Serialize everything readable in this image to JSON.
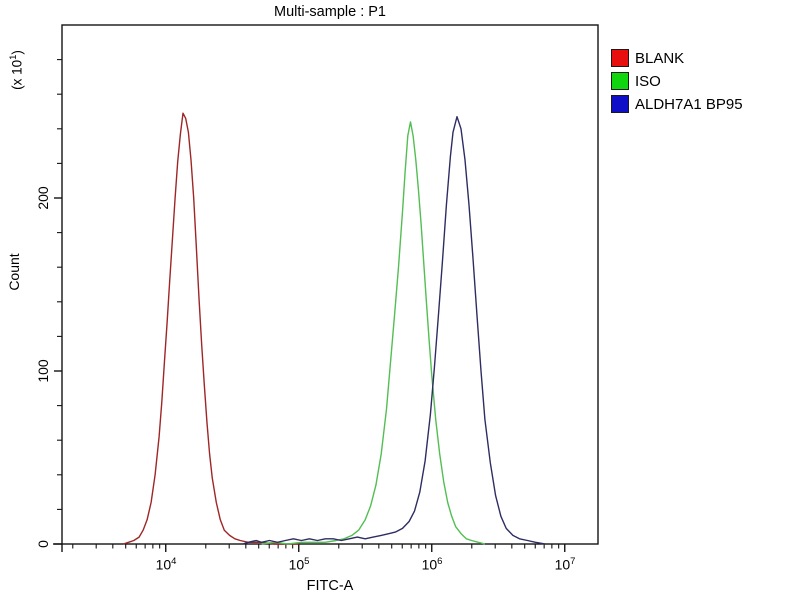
{
  "chart_data": {
    "type": "line",
    "subtype": "flow-cytometry-histogram-overlay",
    "title": "Multi-sample : P1",
    "xlabel": "FITC-A",
    "ylabel": "Count",
    "y_axis_unit": {
      "prefix": "(x 10",
      "exp": "1",
      "suffix": ")"
    },
    "x_scale": "log10",
    "xlim_log10": [
      3.22,
      7.25
    ],
    "ylim": [
      0,
      300
    ],
    "grid": false,
    "legend_position": "outside-top-right",
    "x_major_ticks": [
      {
        "value": 10000,
        "base": "10",
        "exp": "4"
      },
      {
        "value": 100000,
        "base": "10",
        "exp": "5"
      },
      {
        "value": 1000000,
        "base": "10",
        "exp": "6"
      },
      {
        "value": 10000000,
        "base": "10",
        "exp": "7"
      }
    ],
    "y_tick_labels": [
      "0",
      "100",
      "200"
    ],
    "y_major_ticks": [
      0,
      100,
      200
    ],
    "y_minor_step": 20,
    "series": [
      {
        "name": "BLANK",
        "color": "#9e2626",
        "peak_x_approx": 14000,
        "peak_count_axis_units": 249,
        "points_log10x_count": [
          [
            3.68,
            0
          ],
          [
            3.72,
            1
          ],
          [
            3.76,
            2
          ],
          [
            3.8,
            4
          ],
          [
            3.83,
            8
          ],
          [
            3.86,
            14
          ],
          [
            3.89,
            24
          ],
          [
            3.92,
            40
          ],
          [
            3.95,
            62
          ],
          [
            3.97,
            82
          ],
          [
            3.99,
            105
          ],
          [
            4.01,
            128
          ],
          [
            4.03,
            152
          ],
          [
            4.05,
            176
          ],
          [
            4.07,
            200
          ],
          [
            4.09,
            221
          ],
          [
            4.11,
            237
          ],
          [
            4.13,
            249
          ],
          [
            4.15,
            246
          ],
          [
            4.17,
            238
          ],
          [
            4.19,
            222
          ],
          [
            4.21,
            200
          ],
          [
            4.23,
            172
          ],
          [
            4.25,
            142
          ],
          [
            4.27,
            115
          ],
          [
            4.29,
            92
          ],
          [
            4.31,
            70
          ],
          [
            4.33,
            52
          ],
          [
            4.35,
            38
          ],
          [
            4.38,
            24
          ],
          [
            4.41,
            14
          ],
          [
            4.44,
            8
          ],
          [
            4.48,
            5
          ],
          [
            4.52,
            3
          ],
          [
            4.56,
            2
          ],
          [
            4.62,
            1
          ],
          [
            4.72,
            1
          ],
          [
            4.82,
            0
          ],
          [
            5.0,
            0
          ]
        ]
      },
      {
        "name": "ISO",
        "color": "#53be53",
        "peak_x_approx": 660000,
        "peak_count_axis_units": 244,
        "points_log10x_count": [
          [
            4.72,
            0
          ],
          [
            4.82,
            1
          ],
          [
            4.92,
            0
          ],
          [
            5.02,
            1
          ],
          [
            5.12,
            1
          ],
          [
            5.2,
            1
          ],
          [
            5.28,
            2
          ],
          [
            5.34,
            3
          ],
          [
            5.4,
            5
          ],
          [
            5.45,
            8
          ],
          [
            5.5,
            14
          ],
          [
            5.54,
            22
          ],
          [
            5.58,
            34
          ],
          [
            5.62,
            52
          ],
          [
            5.66,
            78
          ],
          [
            5.69,
            105
          ],
          [
            5.72,
            132
          ],
          [
            5.75,
            160
          ],
          [
            5.78,
            192
          ],
          [
            5.8,
            215
          ],
          [
            5.82,
            236
          ],
          [
            5.84,
            244
          ],
          [
            5.86,
            236
          ],
          [
            5.88,
            222
          ],
          [
            5.9,
            205
          ],
          [
            5.92,
            185
          ],
          [
            5.94,
            162
          ],
          [
            5.96,
            140
          ],
          [
            5.98,
            118
          ],
          [
            6.0,
            98
          ],
          [
            6.03,
            72
          ],
          [
            6.06,
            52
          ],
          [
            6.09,
            36
          ],
          [
            6.12,
            24
          ],
          [
            6.15,
            16
          ],
          [
            6.18,
            10
          ],
          [
            6.22,
            6
          ],
          [
            6.26,
            3
          ],
          [
            6.3,
            2
          ],
          [
            6.35,
            1
          ],
          [
            6.4,
            0
          ]
        ]
      },
      {
        "name": "ALDH7A1 BP95",
        "color": "#2d2d63",
        "peak_x_approx": 1550000,
        "peak_count_axis_units": 247,
        "points_log10x_count": [
          [
            4.58,
            0
          ],
          [
            4.62,
            1
          ],
          [
            4.68,
            2
          ],
          [
            4.72,
            1
          ],
          [
            4.78,
            2
          ],
          [
            4.84,
            1
          ],
          [
            4.9,
            2
          ],
          [
            4.96,
            3
          ],
          [
            5.02,
            2
          ],
          [
            5.08,
            3
          ],
          [
            5.14,
            2
          ],
          [
            5.2,
            3
          ],
          [
            5.26,
            3
          ],
          [
            5.32,
            2
          ],
          [
            5.38,
            3
          ],
          [
            5.44,
            4
          ],
          [
            5.5,
            3
          ],
          [
            5.56,
            4
          ],
          [
            5.62,
            5
          ],
          [
            5.68,
            6
          ],
          [
            5.73,
            7
          ],
          [
            5.78,
            9
          ],
          [
            5.83,
            13
          ],
          [
            5.87,
            19
          ],
          [
            5.91,
            30
          ],
          [
            5.95,
            48
          ],
          [
            5.99,
            75
          ],
          [
            6.02,
            102
          ],
          [
            6.05,
            132
          ],
          [
            6.08,
            163
          ],
          [
            6.11,
            196
          ],
          [
            6.14,
            224
          ],
          [
            6.16,
            238
          ],
          [
            6.19,
            247
          ],
          [
            6.22,
            240
          ],
          [
            6.25,
            222
          ],
          [
            6.28,
            196
          ],
          [
            6.31,
            165
          ],
          [
            6.34,
            132
          ],
          [
            6.37,
            100
          ],
          [
            6.4,
            72
          ],
          [
            6.44,
            47
          ],
          [
            6.48,
            28
          ],
          [
            6.52,
            16
          ],
          [
            6.56,
            9
          ],
          [
            6.61,
            5
          ],
          [
            6.66,
            3
          ],
          [
            6.72,
            2
          ],
          [
            6.78,
            1
          ],
          [
            6.85,
            0
          ]
        ]
      }
    ]
  },
  "legend": {
    "items": [
      {
        "label": "BLANK",
        "color": "#e80f0f"
      },
      {
        "label": "ISO",
        "color": "#0fd60f"
      },
      {
        "label": "ALDH7A1 BP95",
        "color": "#0f0fc8"
      }
    ]
  }
}
